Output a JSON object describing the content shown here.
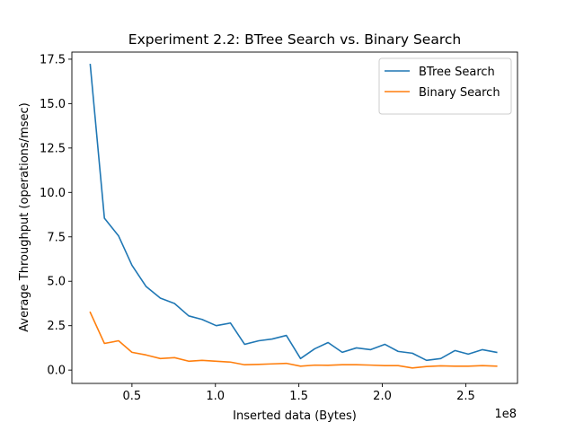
{
  "chart_data": {
    "type": "line",
    "title": "Experiment 2.2: BTree Search vs. Binary Search",
    "xlabel": "Inserted data (Bytes)",
    "ylabel": "Average Throughput (operations/msec)",
    "x_offset_text": "1e8",
    "x_scale_note": "x values in units of 1e8 bytes",
    "xlim": [
      0.14,
      2.81
    ],
    "ylim": [
      -0.75,
      17.9
    ],
    "x_ticks": [
      0.5,
      1.0,
      1.5,
      2.0,
      2.5
    ],
    "x_tick_labels": [
      "0.5",
      "1.0",
      "1.5",
      "2.0",
      "2.5"
    ],
    "y_ticks": [
      0.0,
      2.5,
      5.0,
      7.5,
      10.0,
      12.5,
      15.0,
      17.5
    ],
    "y_tick_labels": [
      "0.0",
      "2.5",
      "5.0",
      "7.5",
      "10.0",
      "12.5",
      "15.0",
      "17.5"
    ],
    "legend_position": "top-right",
    "grid": false,
    "x": [
      0.25,
      0.335,
      0.42,
      0.5,
      0.585,
      0.67,
      0.755,
      0.84,
      0.92,
      1.005,
      1.09,
      1.175,
      1.26,
      1.34,
      1.425,
      1.51,
      1.595,
      1.675,
      1.76,
      1.845,
      1.93,
      2.015,
      2.095,
      2.18,
      2.265,
      2.35,
      2.435,
      2.515,
      2.6,
      2.685
    ],
    "series": [
      {
        "name": "BTree Search",
        "color": "#1f77b4",
        "values": [
          17.2,
          8.55,
          7.55,
          5.9,
          4.7,
          4.05,
          3.75,
          3.05,
          2.85,
          2.5,
          2.65,
          1.45,
          1.65,
          1.75,
          1.95,
          0.65,
          1.2,
          1.55,
          1.0,
          1.25,
          1.15,
          1.45,
          1.05,
          0.95,
          0.55,
          0.65,
          1.1,
          0.9,
          1.15,
          1.0
        ]
      },
      {
        "name": "Binary Search",
        "color": "#ff7f0e",
        "values": [
          3.25,
          1.5,
          1.65,
          1.0,
          0.85,
          0.65,
          0.7,
          0.5,
          0.55,
          0.5,
          0.45,
          0.3,
          0.32,
          0.35,
          0.38,
          0.22,
          0.28,
          0.27,
          0.3,
          0.3,
          0.28,
          0.25,
          0.25,
          0.12,
          0.2,
          0.24,
          0.22,
          0.22,
          0.25,
          0.22
        ]
      }
    ]
  }
}
